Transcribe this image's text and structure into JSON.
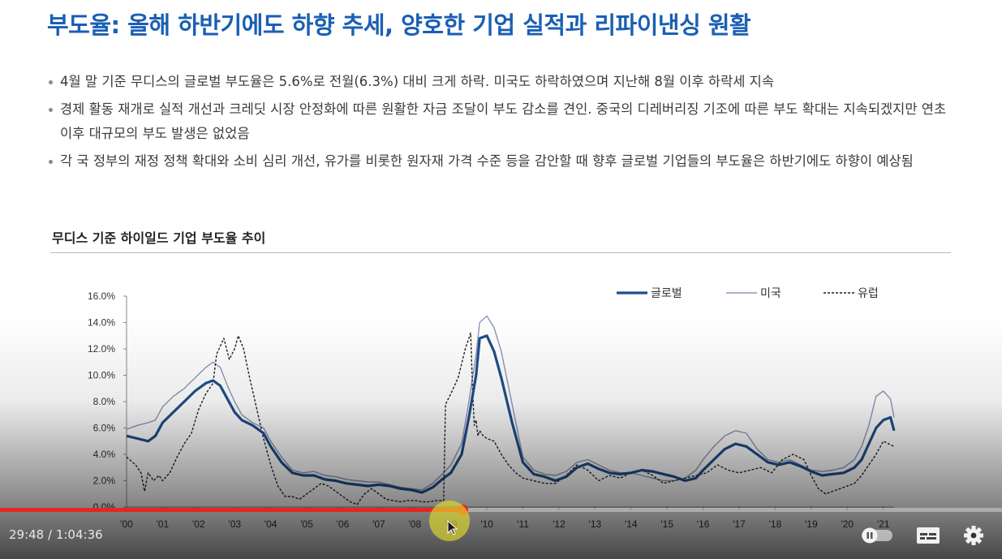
{
  "slide": {
    "title": "부도율: 올해 하반기에도 하향 추세, 양호한 기업 실적과 리파이낸싱 원활",
    "bullets": [
      "4월 말 기준 무디스의 글로벌 부도율은 5.6%로 전월(6.3%) 대비 크게 하락. 미국도 하락하였으며 지난해 8월 이후 하락세 지속",
      "경제 활동 재개로 실적 개선과 크레딧 시장 안정화에 따른 원활한 자금 조달이 부도 감소를 견인. 중국의 디레버리징 기조에 따른 부도 확대는 지속되겠지만 연초 이후 대규모의 부도 발생은 없었음",
      "각 국 정부의 재정 정책 확대와 소비 심리 개선, 유가를 비롯한 원자재 가격 수준 등을 감안할 때 향후 글로벌 기업들의 부도율은 하반기에도 하향이 예상됨"
    ],
    "chart_title": "무디스 기준 하이일드 기업 부도율 추이"
  },
  "chart_data": {
    "type": "line",
    "title": "무디스 기준 하이일드 기업 부도율 추이",
    "xlabel": "",
    "ylabel": "",
    "x_ticks": [
      "'00",
      "'01",
      "'02",
      "'03",
      "'04",
      "'05",
      "'06",
      "'07",
      "'08",
      "'09",
      "'10",
      "'11",
      "'12",
      "'13",
      "'14",
      "'15",
      "'16",
      "'17",
      "'18",
      "'19",
      "'20",
      "'21"
    ],
    "y_ticks": [
      "0.0%",
      "2.0%",
      "4.0%",
      "6.0%",
      "8.0%",
      "10.0%",
      "12.0%",
      "14.0%",
      "16.0%"
    ],
    "xlim": [
      2000.0,
      2021.3
    ],
    "ylim": [
      0,
      16
    ],
    "legend_position": "top-right",
    "series": [
      {
        "name": "글로벌",
        "color": "#1f4e8c",
        "x": [
          2000.0,
          2000.3,
          2000.6,
          2000.8,
          2001.0,
          2001.3,
          2001.6,
          2001.9,
          2002.2,
          2002.4,
          2002.6,
          2002.8,
          2003.0,
          2003.2,
          2003.5,
          2003.8,
          2004.0,
          2004.3,
          2004.6,
          2004.9,
          2005.2,
          2005.5,
          2005.8,
          2006.1,
          2006.4,
          2006.7,
          2007.0,
          2007.3,
          2007.6,
          2007.9,
          2008.2,
          2008.5,
          2008.8,
          2009.0,
          2009.3,
          2009.5,
          2009.7,
          2009.8,
          2010.0,
          2010.2,
          2010.4,
          2010.7,
          2011.0,
          2011.3,
          2011.6,
          2011.9,
          2012.2,
          2012.5,
          2012.8,
          2013.1,
          2013.4,
          2013.7,
          2014.0,
          2014.3,
          2014.6,
          2014.9,
          2015.2,
          2015.5,
          2015.8,
          2016.0,
          2016.3,
          2016.6,
          2016.9,
          2017.2,
          2017.5,
          2017.8,
          2018.1,
          2018.4,
          2018.7,
          2019.0,
          2019.3,
          2019.6,
          2019.9,
          2020.2,
          2020.4,
          2020.6,
          2020.8,
          2021.0,
          2021.2,
          2021.3
        ],
        "values": [
          5.4,
          5.2,
          5.0,
          5.4,
          6.4,
          7.2,
          8.0,
          8.8,
          9.4,
          9.6,
          9.2,
          8.2,
          7.2,
          6.6,
          6.2,
          5.6,
          4.6,
          3.4,
          2.6,
          2.4,
          2.4,
          2.1,
          2.0,
          1.8,
          1.7,
          1.6,
          1.7,
          1.6,
          1.4,
          1.3,
          1.1,
          1.5,
          2.2,
          2.6,
          4.0,
          6.8,
          10.0,
          12.8,
          13.0,
          11.8,
          9.8,
          6.4,
          3.4,
          2.5,
          2.3,
          2.0,
          2.3,
          3.0,
          3.3,
          2.9,
          2.6,
          2.5,
          2.6,
          2.8,
          2.7,
          2.5,
          2.3,
          2.0,
          2.2,
          2.8,
          3.6,
          4.4,
          4.8,
          4.6,
          4.0,
          3.4,
          3.2,
          3.4,
          3.1,
          2.7,
          2.4,
          2.5,
          2.6,
          3.0,
          3.6,
          4.8,
          6.0,
          6.6,
          6.8,
          5.8
        ]
      },
      {
        "name": "미국",
        "color": "#8e97b9",
        "x": [
          2000.0,
          2000.3,
          2000.6,
          2000.8,
          2001.0,
          2001.3,
          2001.6,
          2001.9,
          2002.2,
          2002.4,
          2002.6,
          2002.8,
          2003.0,
          2003.2,
          2003.5,
          2003.8,
          2004.0,
          2004.3,
          2004.6,
          2004.9,
          2005.2,
          2005.5,
          2005.8,
          2006.1,
          2006.4,
          2006.7,
          2007.0,
          2007.3,
          2007.6,
          2007.9,
          2008.2,
          2008.5,
          2008.8,
          2009.0,
          2009.3,
          2009.5,
          2009.7,
          2009.8,
          2010.0,
          2010.2,
          2010.4,
          2010.7,
          2011.0,
          2011.3,
          2011.6,
          2011.9,
          2012.2,
          2012.5,
          2012.8,
          2013.1,
          2013.4,
          2013.7,
          2014.0,
          2014.3,
          2014.6,
          2014.9,
          2015.2,
          2015.5,
          2015.8,
          2016.0,
          2016.3,
          2016.6,
          2016.9,
          2017.2,
          2017.5,
          2017.8,
          2018.1,
          2018.4,
          2018.7,
          2019.0,
          2019.3,
          2019.6,
          2019.9,
          2020.2,
          2020.4,
          2020.6,
          2020.8,
          2021.0,
          2021.2,
          2021.3
        ],
        "values": [
          5.9,
          6.2,
          6.4,
          6.6,
          7.6,
          8.4,
          9.0,
          9.8,
          10.6,
          11.0,
          10.6,
          9.2,
          8.0,
          7.0,
          6.4,
          6.0,
          5.0,
          3.8,
          2.8,
          2.6,
          2.7,
          2.4,
          2.3,
          2.1,
          2.0,
          1.9,
          1.9,
          1.7,
          1.5,
          1.4,
          1.3,
          1.8,
          2.6,
          3.2,
          4.8,
          8.0,
          11.6,
          14.0,
          14.5,
          13.6,
          11.8,
          7.8,
          3.8,
          2.8,
          2.5,
          2.4,
          2.7,
          3.4,
          3.6,
          3.2,
          2.8,
          2.6,
          2.6,
          2.4,
          2.2,
          2.0,
          2.0,
          2.2,
          2.8,
          3.6,
          4.6,
          5.4,
          5.8,
          5.6,
          4.4,
          3.6,
          3.4,
          3.6,
          3.2,
          2.8,
          2.7,
          2.8,
          3.0,
          3.6,
          4.6,
          6.2,
          8.4,
          8.8,
          8.2,
          6.8
        ]
      },
      {
        "name": "유럽",
        "color": "#222222",
        "x": [
          2000.0,
          2000.25,
          2000.4,
          2000.5,
          2000.6,
          2000.75,
          2000.9,
          2001.0,
          2001.2,
          2001.4,
          2001.6,
          2001.8,
          2002.0,
          2002.2,
          2002.4,
          2002.5,
          2002.7,
          2002.85,
          2003.0,
          2003.1,
          2003.25,
          2003.4,
          2003.6,
          2003.8,
          2004.0,
          2004.2,
          2004.4,
          2004.6,
          2004.8,
          2005.0,
          2005.2,
          2005.4,
          2005.6,
          2005.8,
          2006.0,
          2006.2,
          2006.4,
          2006.6,
          2006.8,
          2007.0,
          2007.2,
          2007.4,
          2007.6,
          2007.8,
          2008.0,
          2008.2,
          2008.4,
          2008.6,
          2008.8,
          2008.85,
          2009.0,
          2009.2,
          2009.4,
          2009.55,
          2009.6,
          2009.65,
          2009.7,
          2009.75,
          2009.8,
          2009.9,
          2010.0,
          2010.2,
          2010.4,
          2010.6,
          2010.8,
          2011.0,
          2011.3,
          2011.6,
          2011.9,
          2012.2,
          2012.5,
          2012.8,
          2013.1,
          2013.4,
          2013.7,
          2014.0,
          2014.3,
          2014.6,
          2014.9,
          2015.2,
          2015.5,
          2015.8,
          2016.1,
          2016.4,
          2016.7,
          2017.0,
          2017.3,
          2017.6,
          2017.9,
          2018.2,
          2018.5,
          2018.8,
          2019.0,
          2019.2,
          2019.4,
          2019.6,
          2019.8,
          2020.0,
          2020.2,
          2020.4,
          2020.6,
          2020.8,
          2021.0,
          2021.3
        ],
        "values": [
          3.8,
          3.2,
          2.6,
          1.2,
          2.6,
          2.0,
          2.4,
          2.0,
          2.6,
          3.8,
          4.8,
          5.6,
          7.4,
          8.6,
          9.4,
          11.6,
          12.8,
          11.2,
          12.0,
          13.0,
          12.0,
          10.0,
          7.6,
          5.2,
          3.2,
          1.6,
          0.8,
          0.8,
          0.6,
          1.0,
          1.4,
          1.8,
          1.6,
          1.2,
          0.8,
          0.4,
          0.2,
          1.0,
          1.4,
          1.0,
          0.6,
          0.5,
          0.4,
          0.5,
          0.5,
          0.4,
          0.4,
          0.5,
          0.5,
          7.8,
          8.6,
          9.8,
          12.0,
          13.2,
          9.0,
          6.2,
          6.6,
          5.4,
          5.8,
          5.4,
          5.2,
          5.0,
          4.0,
          3.2,
          2.6,
          2.2,
          2.0,
          1.8,
          1.8,
          2.4,
          3.2,
          2.8,
          2.0,
          2.4,
          2.2,
          2.6,
          2.8,
          2.4,
          1.8,
          2.0,
          2.2,
          2.4,
          2.6,
          3.2,
          2.8,
          2.6,
          2.8,
          3.0,
          2.6,
          3.6,
          4.0,
          3.6,
          2.4,
          1.4,
          1.0,
          1.2,
          1.4,
          1.6,
          1.8,
          2.4,
          3.2,
          4.0,
          5.0,
          4.6
        ]
      }
    ]
  },
  "player": {
    "current_time": "29:48",
    "separator": " / ",
    "duration": "1:04:36",
    "progress_fraction": 0.4613,
    "accent_color": "#e52620",
    "controls": [
      "autoplay-toggle-icon",
      "subtitles-icon",
      "settings-gear-icon"
    ]
  }
}
